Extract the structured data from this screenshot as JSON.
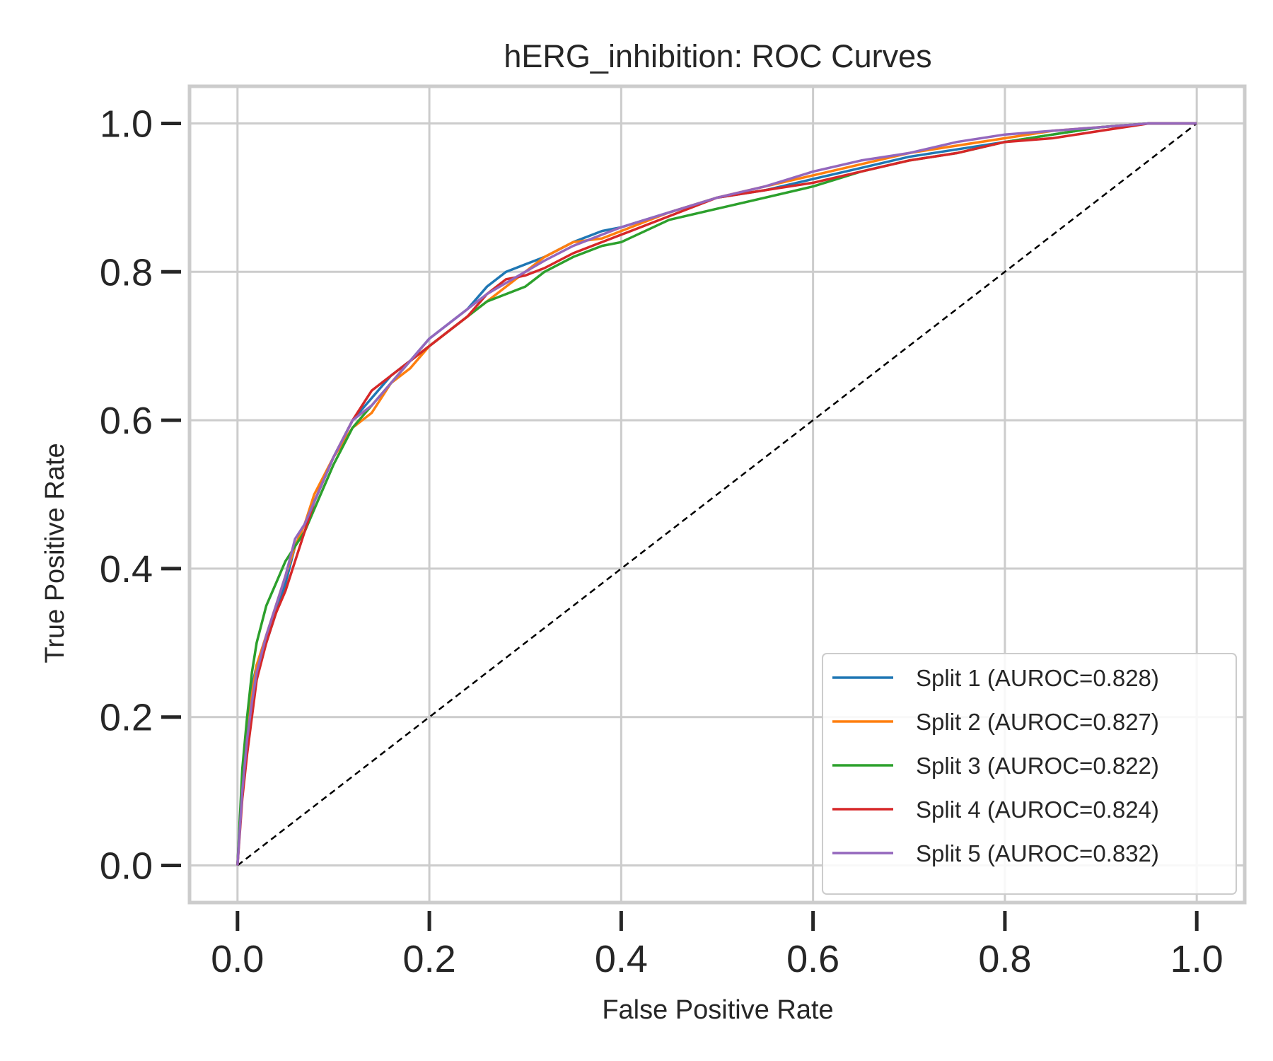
{
  "chart_data": {
    "type": "line",
    "title": "hERG_inhibition: ROC Curves",
    "xlabel": "False Positive Rate",
    "ylabel": "True Positive Rate",
    "xlim": [
      -0.05,
      1.05
    ],
    "ylim": [
      -0.05,
      1.05
    ],
    "xticks": [
      "0.0",
      "0.2",
      "0.4",
      "0.6",
      "0.8",
      "1.0"
    ],
    "yticks": [
      "0.0",
      "0.2",
      "0.4",
      "0.6",
      "0.8",
      "1.0"
    ],
    "grid": true,
    "legend_position": "lower-right",
    "diagonal": {
      "x": [
        0,
        1
      ],
      "y": [
        0,
        1
      ],
      "color": "#000000",
      "style": "dashed"
    },
    "series": [
      {
        "name": "Split 1 (AUROC=0.828)",
        "color": "#1f77b4",
        "x": [
          0,
          0.005,
          0.01,
          0.015,
          0.02,
          0.03,
          0.04,
          0.05,
          0.06,
          0.07,
          0.08,
          0.1,
          0.12,
          0.14,
          0.16,
          0.18,
          0.2,
          0.22,
          0.24,
          0.26,
          0.28,
          0.3,
          0.32,
          0.35,
          0.38,
          0.4,
          0.45,
          0.5,
          0.55,
          0.6,
          0.65,
          0.7,
          0.75,
          0.8,
          0.85,
          0.9,
          0.95,
          1.0
        ],
        "y": [
          0,
          0.12,
          0.19,
          0.24,
          0.27,
          0.3,
          0.34,
          0.38,
          0.43,
          0.46,
          0.49,
          0.55,
          0.6,
          0.63,
          0.66,
          0.68,
          0.71,
          0.73,
          0.75,
          0.78,
          0.8,
          0.81,
          0.82,
          0.84,
          0.855,
          0.86,
          0.88,
          0.9,
          0.91,
          0.925,
          0.94,
          0.955,
          0.965,
          0.975,
          0.985,
          0.995,
          1.0,
          1.0
        ]
      },
      {
        "name": "Split 2 (AUROC=0.827)",
        "color": "#ff7f0e",
        "x": [
          0,
          0.005,
          0.01,
          0.015,
          0.02,
          0.03,
          0.04,
          0.05,
          0.06,
          0.07,
          0.08,
          0.1,
          0.12,
          0.14,
          0.16,
          0.18,
          0.2,
          0.22,
          0.24,
          0.26,
          0.28,
          0.3,
          0.32,
          0.35,
          0.38,
          0.4,
          0.45,
          0.5,
          0.55,
          0.6,
          0.65,
          0.7,
          0.75,
          0.8,
          0.85,
          0.9,
          0.95,
          1.0
        ],
        "y": [
          0,
          0.11,
          0.18,
          0.23,
          0.27,
          0.31,
          0.35,
          0.39,
          0.43,
          0.46,
          0.5,
          0.55,
          0.59,
          0.61,
          0.65,
          0.67,
          0.7,
          0.72,
          0.74,
          0.76,
          0.78,
          0.8,
          0.82,
          0.84,
          0.845,
          0.855,
          0.88,
          0.9,
          0.915,
          0.93,
          0.945,
          0.96,
          0.97,
          0.98,
          0.99,
          0.995,
          1.0,
          1.0
        ]
      },
      {
        "name": "Split 3 (AUROC=0.822)",
        "color": "#2ca02c",
        "x": [
          0,
          0.005,
          0.01,
          0.015,
          0.02,
          0.03,
          0.04,
          0.05,
          0.06,
          0.07,
          0.08,
          0.1,
          0.12,
          0.14,
          0.16,
          0.18,
          0.2,
          0.22,
          0.24,
          0.26,
          0.28,
          0.3,
          0.32,
          0.35,
          0.38,
          0.4,
          0.45,
          0.5,
          0.55,
          0.6,
          0.65,
          0.7,
          0.75,
          0.8,
          0.85,
          0.9,
          0.95,
          1.0
        ],
        "y": [
          0,
          0.13,
          0.2,
          0.26,
          0.3,
          0.35,
          0.38,
          0.41,
          0.43,
          0.45,
          0.48,
          0.54,
          0.59,
          0.62,
          0.65,
          0.68,
          0.7,
          0.72,
          0.74,
          0.76,
          0.77,
          0.78,
          0.8,
          0.82,
          0.835,
          0.84,
          0.87,
          0.885,
          0.9,
          0.915,
          0.935,
          0.95,
          0.96,
          0.975,
          0.985,
          0.995,
          1.0,
          1.0
        ]
      },
      {
        "name": "Split 4 (AUROC=0.824)",
        "color": "#d62728",
        "x": [
          0,
          0.005,
          0.01,
          0.015,
          0.02,
          0.03,
          0.04,
          0.05,
          0.06,
          0.07,
          0.08,
          0.1,
          0.12,
          0.14,
          0.16,
          0.18,
          0.2,
          0.22,
          0.24,
          0.26,
          0.28,
          0.3,
          0.32,
          0.35,
          0.38,
          0.4,
          0.45,
          0.5,
          0.55,
          0.6,
          0.65,
          0.7,
          0.75,
          0.8,
          0.85,
          0.9,
          0.95,
          1.0
        ],
        "y": [
          0,
          0.09,
          0.15,
          0.2,
          0.25,
          0.3,
          0.34,
          0.37,
          0.41,
          0.45,
          0.49,
          0.55,
          0.6,
          0.64,
          0.66,
          0.68,
          0.7,
          0.72,
          0.74,
          0.77,
          0.79,
          0.795,
          0.805,
          0.825,
          0.84,
          0.85,
          0.875,
          0.9,
          0.91,
          0.92,
          0.935,
          0.95,
          0.96,
          0.975,
          0.98,
          0.99,
          1.0,
          1.0
        ]
      },
      {
        "name": "Split 5 (AUROC=0.832)",
        "color": "#9467bd",
        "x": [
          0,
          0.005,
          0.01,
          0.015,
          0.02,
          0.03,
          0.04,
          0.05,
          0.06,
          0.07,
          0.08,
          0.1,
          0.12,
          0.14,
          0.16,
          0.18,
          0.2,
          0.22,
          0.24,
          0.26,
          0.28,
          0.3,
          0.32,
          0.35,
          0.38,
          0.4,
          0.45,
          0.5,
          0.55,
          0.6,
          0.65,
          0.7,
          0.75,
          0.8,
          0.85,
          0.9,
          0.95,
          1.0
        ],
        "y": [
          0,
          0.1,
          0.17,
          0.22,
          0.26,
          0.31,
          0.35,
          0.39,
          0.44,
          0.46,
          0.49,
          0.55,
          0.6,
          0.62,
          0.65,
          0.68,
          0.71,
          0.73,
          0.75,
          0.77,
          0.785,
          0.8,
          0.815,
          0.835,
          0.85,
          0.86,
          0.88,
          0.9,
          0.915,
          0.935,
          0.95,
          0.96,
          0.975,
          0.985,
          0.99,
          0.995,
          1.0,
          1.0
        ]
      }
    ]
  }
}
